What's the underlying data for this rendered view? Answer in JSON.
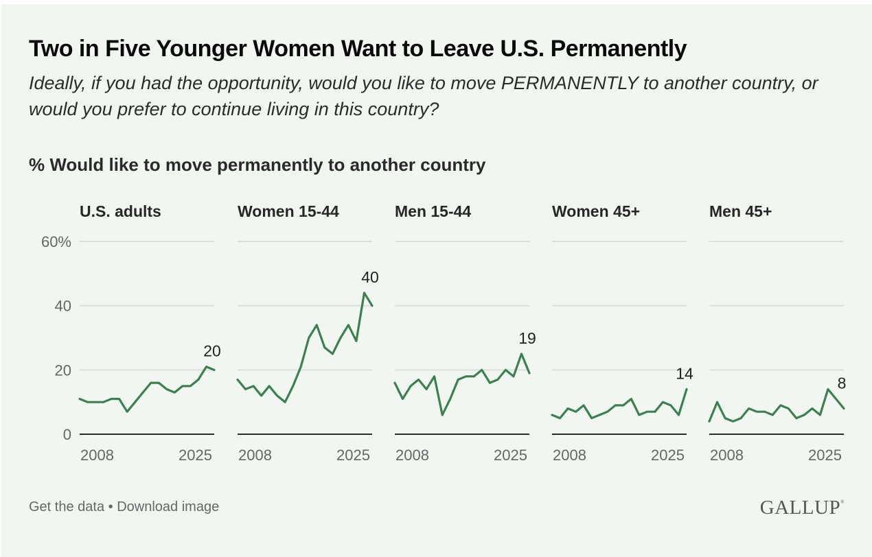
{
  "title": "Two in Five Younger Women Want to Leave U.S. Permanently",
  "subtitle": "Ideally, if you had the opportunity, would you like to move PERMANENTLY to another country, or would you prefer to continue living in this country?",
  "metric_label": "% Would like to move permanently to another country",
  "footer": {
    "get_data": "Get the data",
    "separator": "•",
    "download": "Download image"
  },
  "logo": {
    "text": "GALLUP",
    "mark": "®"
  },
  "colors": {
    "line": "#3b8050",
    "gridline": "#dcdfdb",
    "baseline": "#2a2a2a",
    "background": "#f1f6f1"
  },
  "chart_data": {
    "type": "line",
    "title": "% Would like to move permanently to another country",
    "ylabel": "",
    "xlabel": "",
    "ylim": [
      0,
      60
    ],
    "y_ticks": [
      0,
      20,
      40,
      60
    ],
    "y_tick_labels": [
      "0",
      "20",
      "40",
      "60%"
    ],
    "x_tick_labels": [
      "2008",
      "2025"
    ],
    "grid": true,
    "panels": [
      {
        "name": "U.S. adults",
        "values": [
          11,
          10,
          10,
          10,
          11,
          11,
          7,
          10,
          13,
          16,
          16,
          14,
          13,
          15,
          15,
          17,
          21,
          20
        ],
        "end_label": "20"
      },
      {
        "name": "Women 15-44",
        "values": [
          17,
          14,
          15,
          12,
          15,
          12,
          10,
          15,
          21,
          30,
          34,
          27,
          25,
          30,
          34,
          29,
          44,
          40
        ],
        "end_label": "40"
      },
      {
        "name": "Men 15-44",
        "values": [
          16,
          11,
          15,
          17,
          14,
          18,
          6,
          11,
          17,
          18,
          18,
          20,
          16,
          17,
          20,
          18,
          25,
          19
        ],
        "end_label": "19"
      },
      {
        "name": "Women 45+",
        "values": [
          6,
          5,
          8,
          7,
          9,
          5,
          6,
          7,
          9,
          9,
          11,
          6,
          7,
          7,
          10,
          9,
          6,
          14
        ],
        "end_label": "14"
      },
      {
        "name": "Men 45+",
        "values": [
          4,
          10,
          5,
          4,
          5,
          8,
          7,
          7,
          6,
          9,
          8,
          5,
          6,
          8,
          6,
          14,
          11,
          8
        ],
        "end_label": "8"
      }
    ]
  }
}
